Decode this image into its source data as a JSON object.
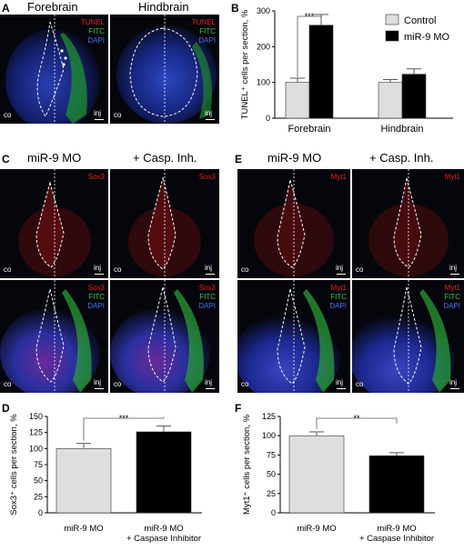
{
  "panels": {
    "A": {
      "label": "A",
      "headers": [
        "Forebrain",
        "Hindbrain"
      ],
      "channels": [
        "TUNEL",
        "FITC",
        "DAPI"
      ]
    },
    "B": {
      "label": "B"
    },
    "C": {
      "label": "C",
      "headers": [
        "miR-9 MO",
        "+ Casp. Inh."
      ],
      "top_channel": "Sox3",
      "bottom_channels": [
        "Sox3",
        "FITC",
        "DAPI"
      ]
    },
    "E": {
      "label": "E",
      "headers": [
        "miR-9 MO",
        "+ Casp. Inh."
      ],
      "top_channel": "Myt1",
      "bottom_channels": [
        "Myt1",
        "FITC",
        "DAPI"
      ]
    },
    "D": {
      "label": "D"
    },
    "F": {
      "label": "F"
    }
  },
  "image_labels": {
    "co": "co",
    "inj": "inj"
  },
  "chart_data": [
    {
      "id": "B",
      "type": "bar",
      "ylabel": "TUNEL⁺ cells per section, %",
      "categories": [
        "Forebrain",
        "Hindbrain"
      ],
      "series": [
        {
          "name": "Control",
          "color": "#dedede",
          "values": [
            100,
            100
          ],
          "errors": [
            12,
            8
          ]
        },
        {
          "name": "miR-9 MO",
          "color": "#000000",
          "values": [
            260,
            123
          ],
          "errors": [
            30,
            15
          ]
        }
      ],
      "ylim": [
        0,
        300
      ],
      "yticks": [
        0,
        100,
        200,
        300
      ],
      "significance": "***",
      "legend": "top-right"
    },
    {
      "id": "D",
      "type": "bar",
      "ylabel": "Sox3⁺ cells per section, %",
      "categories": [
        "miR-9 MO",
        "miR-9 MO\n+ Caspase Inhibitor"
      ],
      "values": [
        100,
        126
      ],
      "errors": [
        8,
        9
      ],
      "colors": [
        "#dedede",
        "#000000"
      ],
      "ylim": [
        0,
        150
      ],
      "yticks": [
        0,
        25,
        50,
        75,
        100,
        125,
        150
      ],
      "significance": "***"
    },
    {
      "id": "F",
      "type": "bar",
      "ylabel": "Myt1⁺ cells per section, %",
      "categories": [
        "miR-9 MO",
        "miR-9 MO\n+ Caspase Inhibitor"
      ],
      "values": [
        100,
        74
      ],
      "errors": [
        5,
        4
      ],
      "colors": [
        "#dedede",
        "#000000"
      ],
      "ylim": [
        0,
        125
      ],
      "yticks": [
        0,
        25,
        50,
        75,
        100,
        125
      ],
      "significance": "**"
    }
  ]
}
